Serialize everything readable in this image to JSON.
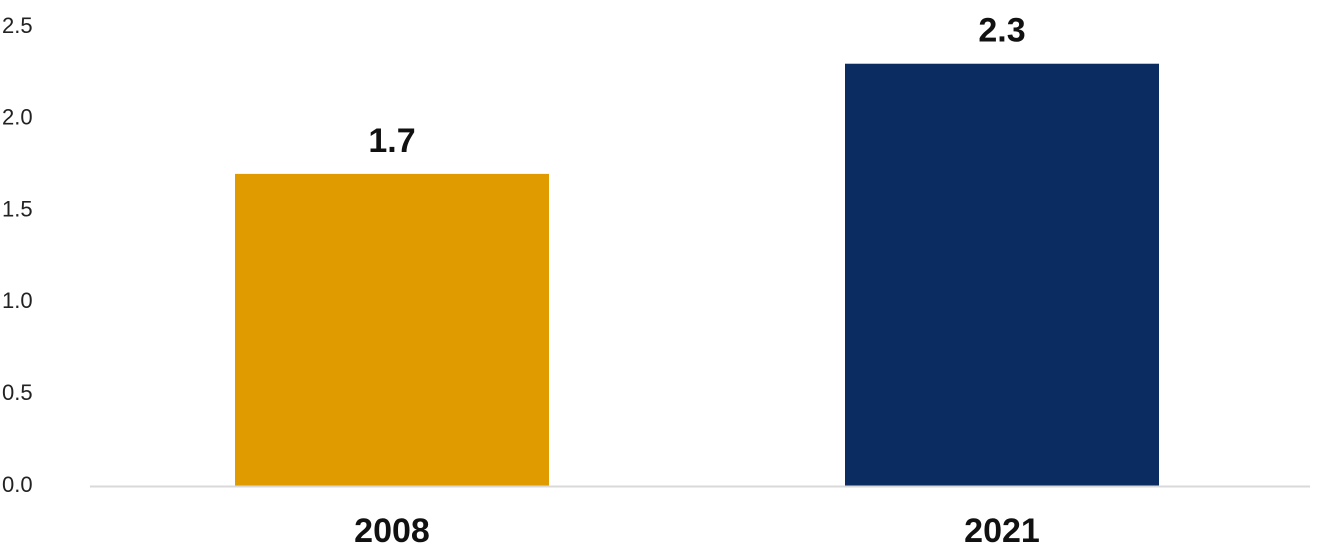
{
  "chart_data": {
    "type": "bar",
    "categories": [
      "2008",
      "2021"
    ],
    "values": [
      1.7,
      2.3
    ],
    "data_labels": [
      "1.7",
      "2.3"
    ],
    "bar_colors": [
      "#E09B00",
      "#0A2C60"
    ],
    "ylim": [
      0,
      2.5
    ],
    "yticks": [
      0.0,
      0.5,
      1.0,
      1.5,
      2.0,
      2.5
    ],
    "ytick_labels": [
      "0.0",
      "0.5",
      "1.0",
      "1.5",
      "2.0",
      "2.5"
    ],
    "grid": false,
    "legend": "none",
    "baseline_color": "#D9D9D9"
  }
}
